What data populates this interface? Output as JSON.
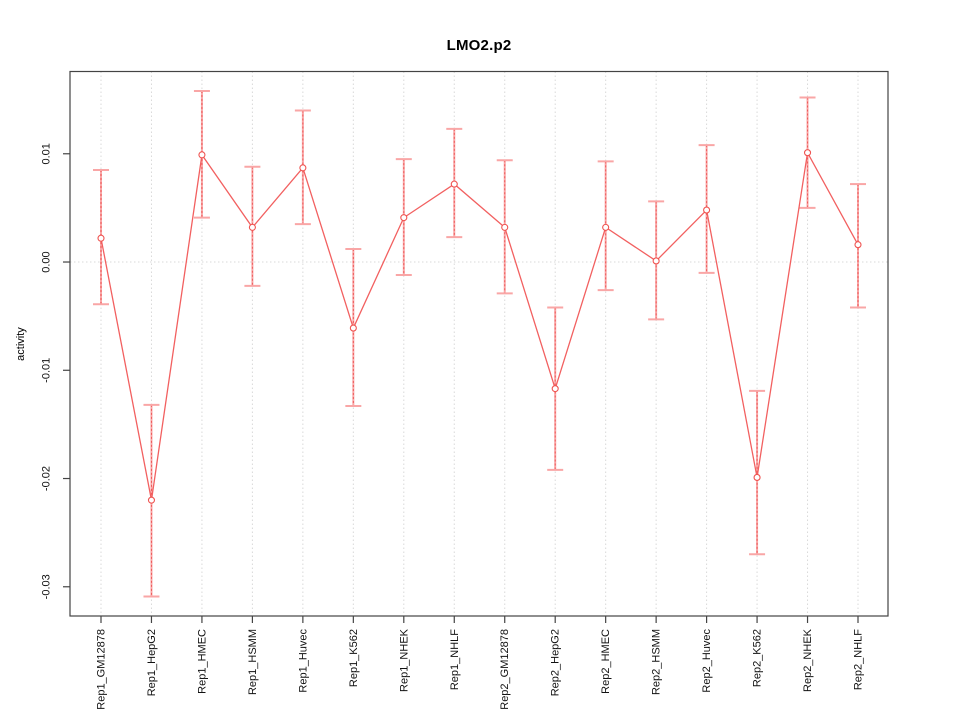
{
  "chart_data": {
    "type": "line",
    "title": "LMO2.p2",
    "xlabel": "",
    "ylabel": "activity",
    "legend": "none",
    "grid": {
      "vertical_per_category": true,
      "horizontal_at_zero": true,
      "style": "dotted"
    },
    "categories": [
      "Rep1_GM12878",
      "Rep1_HepG2",
      "Rep1_HMEC",
      "Rep1_HSMM",
      "Rep1_Huvec",
      "Rep1_K562",
      "Rep1_NHEK",
      "Rep1_NHLF",
      "Rep2_GM12878",
      "Rep2_HepG2",
      "Rep2_HMEC",
      "Rep2_HSMM",
      "Rep2_Huvec",
      "Rep2_K562",
      "Rep2_NHEK",
      "Rep2_NHLF"
    ],
    "series": [
      {
        "name": "activity",
        "marker": "open-circle",
        "values": [
          0.0022,
          -0.022,
          0.0099,
          0.0032,
          0.0087,
          -0.0061,
          0.0041,
          0.0072,
          0.0032,
          -0.0117,
          0.0032,
          0.0001,
          0.0048,
          -0.0199,
          0.0101,
          0.0016
        ],
        "ci_upper": [
          0.0085,
          -0.0132,
          0.0158,
          0.0088,
          0.014,
          0.0012,
          0.0095,
          0.0123,
          0.0094,
          -0.0042,
          0.0093,
          0.0056,
          0.0108,
          -0.0119,
          0.0152,
          0.0072
        ],
        "ci_lower": [
          -0.0039,
          -0.0309,
          0.0041,
          -0.0022,
          0.0035,
          -0.0133,
          -0.0012,
          0.0023,
          -0.0029,
          -0.0192,
          -0.0026,
          -0.0053,
          -0.001,
          -0.027,
          0.005,
          -0.0042
        ]
      }
    ],
    "y_ticks": [
      0.01,
      0,
      -0.01,
      -0.02,
      -0.03
    ],
    "y_tick_labels": [
      "0.01",
      "0.00",
      "-0.01",
      "-0.02",
      "-0.03"
    ],
    "ylim": [
      -0.0327,
      0.0176
    ],
    "colors": {
      "line": "#f26060",
      "marker": "#ef5350",
      "error_bar": "#f9a6a6",
      "error_bar_dash": "#ee5a5a",
      "grid": "#d9d9d9",
      "axis": "#444444",
      "background": "#ffffff"
    }
  }
}
